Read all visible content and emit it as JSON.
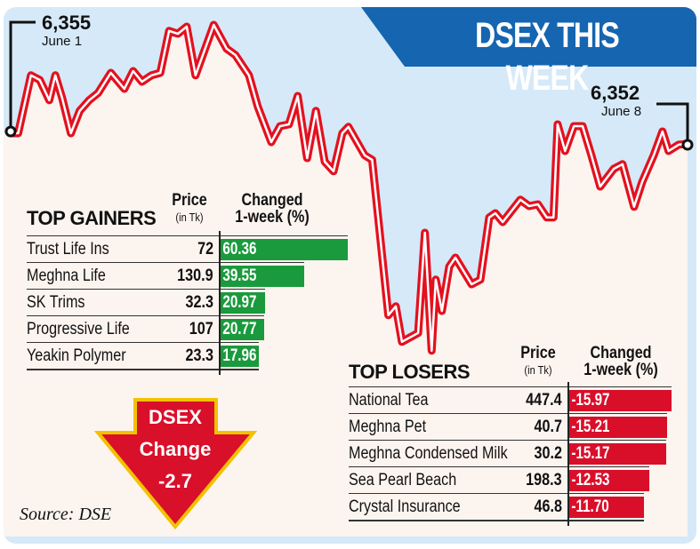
{
  "title": "DSEX THIS WEEK",
  "colors": {
    "line": "#e3111f",
    "banner": "#1565b0",
    "gain": "#1a9a3c",
    "loss": "#d90f2a",
    "arrow": "#d9102a",
    "arrow_border": "#f2c200",
    "sky": "#d5e9f8",
    "fill": "#fcf4ef"
  },
  "chart_data": {
    "type": "line",
    "title": "DSEX THIS WEEK",
    "xlabel": "Time (% of week, June 1 to June 8)",
    "ylabel": "DSEX index (approx.)",
    "grid": false,
    "start": {
      "value": "6,355",
      "date": "June 1"
    },
    "end": {
      "value": "6,352",
      "date": "June 8"
    },
    "series": [
      {
        "name": "DSEX",
        "points": [
          [
            0,
            6355
          ],
          [
            1.1,
            6355
          ],
          [
            3,
            6371.3
          ],
          [
            4.3,
            6370
          ],
          [
            5.7,
            6364.3
          ],
          [
            6.6,
            6371.3
          ],
          [
            7.6,
            6365
          ],
          [
            8.9,
            6355
          ],
          [
            10.2,
            6361.3
          ],
          [
            11.6,
            6364.3
          ],
          [
            12.9,
            6366.3
          ],
          [
            14.8,
            6372
          ],
          [
            16.8,
            6367.5
          ],
          [
            18.1,
            6372.5
          ],
          [
            19.4,
            6369.5
          ],
          [
            20.8,
            6371.3
          ],
          [
            22.1,
            6372
          ],
          [
            23.4,
            6383.8
          ],
          [
            24.7,
            6383
          ],
          [
            26,
            6385
          ],
          [
            27.3,
            6371.3
          ],
          [
            30,
            6385.5
          ],
          [
            31.9,
            6378.8
          ],
          [
            33.2,
            6377
          ],
          [
            35.2,
            6371.3
          ],
          [
            36.5,
            6362.5
          ],
          [
            38.5,
            6352.5
          ],
          [
            39.8,
            6357
          ],
          [
            41.1,
            6357.5
          ],
          [
            42.4,
            6365.5
          ],
          [
            43.8,
            6348
          ],
          [
            45.1,
            6361.3
          ],
          [
            46.4,
            6347
          ],
          [
            47.7,
            6344.3
          ],
          [
            49,
            6355
          ],
          [
            49.9,
            6356.8
          ],
          [
            52.3,
            6348.8
          ],
          [
            53.4,
            6347.5
          ],
          [
            55.8,
            6303.8
          ],
          [
            56.9,
            6306.3
          ],
          [
            57.8,
            6296.3
          ],
          [
            60.2,
            6298.8
          ],
          [
            61.2,
            6327
          ],
          [
            62.2,
            6293.8
          ],
          [
            62.8,
            6313.8
          ],
          [
            63.7,
            6305
          ],
          [
            64.8,
            6317.5
          ],
          [
            65.7,
            6320
          ],
          [
            68.1,
            6312.5
          ],
          [
            69.4,
            6313.8
          ],
          [
            70.7,
            6331.3
          ],
          [
            71.6,
            6332.5
          ],
          [
            72.7,
            6330
          ],
          [
            75.3,
            6336.3
          ],
          [
            76.6,
            6334.5
          ],
          [
            77.9,
            6335
          ],
          [
            79.2,
            6331.3
          ],
          [
            80.2,
            6331.3
          ],
          [
            80.8,
            6357.5
          ],
          [
            81.9,
            6350
          ],
          [
            83.2,
            6357
          ],
          [
            84.5,
            6357
          ],
          [
            85.8,
            6348.8
          ],
          [
            87.1,
            6340
          ],
          [
            89.1,
            6345
          ],
          [
            90.4,
            6346.3
          ],
          [
            92.1,
            6334.3
          ],
          [
            93.3,
            6341.3
          ],
          [
            95,
            6348.8
          ],
          [
            96.3,
            6355.5
          ],
          [
            97.2,
            6350
          ],
          [
            98.7,
            6351.8
          ],
          [
            100,
            6352
          ]
        ]
      }
    ]
  },
  "gainers": {
    "title": "TOP GAINERS",
    "price_header": "Price",
    "price_unit": "(in Tk)",
    "change_header": "Changed",
    "change_unit": "1-week (%)",
    "rows": [
      {
        "name": "Trust Life Ins",
        "price": "72",
        "change": "60.36",
        "value": 60.36
      },
      {
        "name": "Meghna Life",
        "price": "130.9",
        "change": "39.55",
        "value": 39.55
      },
      {
        "name": "SK Trims",
        "price": "32.3",
        "change": "20.97",
        "value": 20.97
      },
      {
        "name": "Progressive Life",
        "price": "107",
        "change": "20.77",
        "value": 20.77
      },
      {
        "name": "Yeakin Polymer",
        "price": "23.3",
        "change": "17.96",
        "value": 17.96
      }
    ]
  },
  "losers": {
    "title": "TOP LOSERS",
    "price_header": "Price",
    "price_unit": "(in Tk)",
    "change_header": "Changed",
    "change_unit": "1-week (%)",
    "rows": [
      {
        "name": "National Tea",
        "price": "447.4",
        "change": "-15.97",
        "value": -15.97
      },
      {
        "name": "Meghna Pet",
        "price": "40.7",
        "change": "-15.21",
        "value": -15.21
      },
      {
        "name": "Meghna Condensed Milk",
        "price": "30.2",
        "change": "-15.17",
        "value": -15.17
      },
      {
        "name": "Sea Pearl Beach",
        "price": "198.3",
        "change": "-12.53",
        "value": -12.53
      },
      {
        "name": "Crystal Insurance",
        "price": "46.8",
        "change": "-11.70",
        "value": -11.7
      }
    ]
  },
  "dsex_change": {
    "line1": "DSEX",
    "line2": "Change",
    "value": "-2.7"
  },
  "source": "Source: DSE"
}
